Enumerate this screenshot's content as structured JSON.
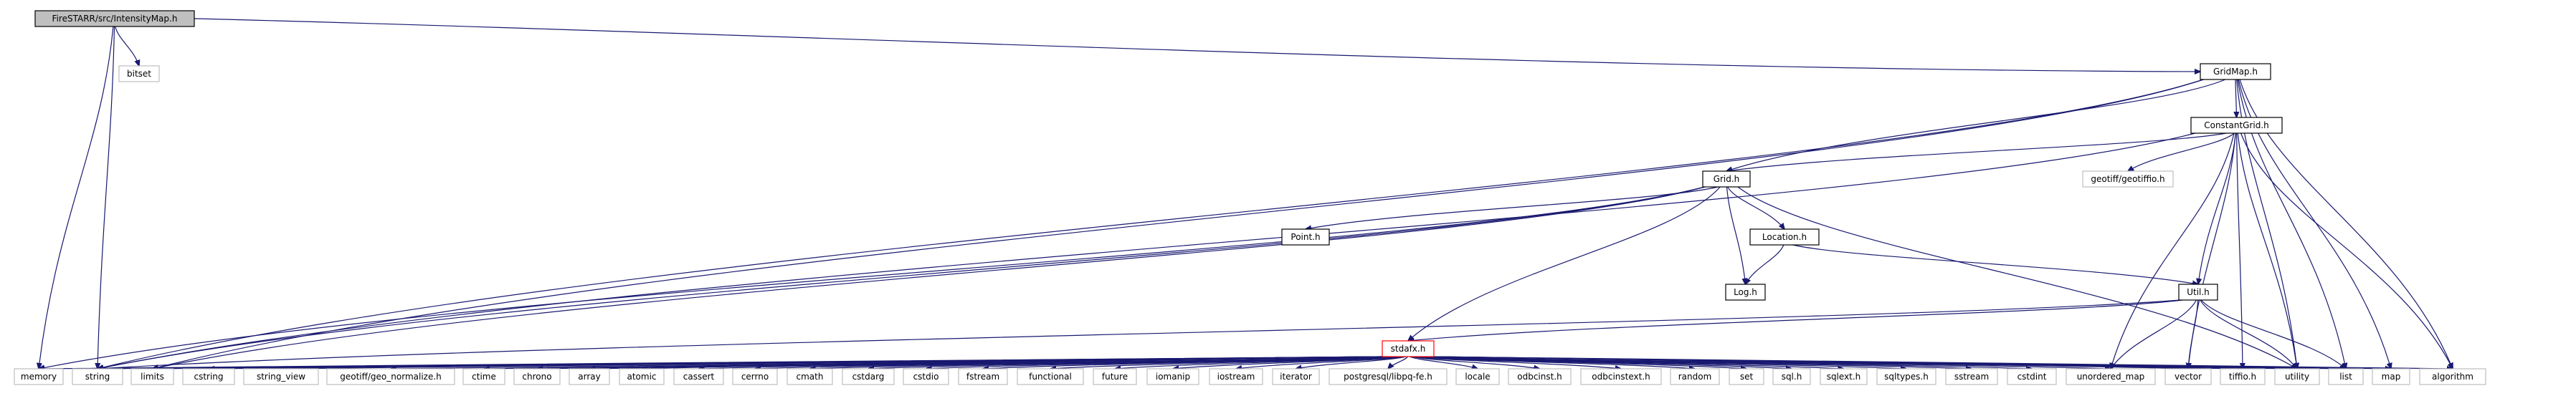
{
  "graph": {
    "root": {
      "label": "FireSTARR/src/IntensityMap.h"
    },
    "project_headers": [
      {
        "id": "gridmap",
        "label": "GridMap.h"
      },
      {
        "id": "constantgrid",
        "label": "ConstantGrid.h"
      },
      {
        "id": "grid",
        "label": "Grid.h"
      },
      {
        "id": "point",
        "label": "Point.h"
      },
      {
        "id": "location",
        "label": "Location.h"
      },
      {
        "id": "log",
        "label": "Log.h"
      },
      {
        "id": "util",
        "label": "Util.h"
      },
      {
        "id": "stdafx",
        "label": "stdafx.h"
      }
    ],
    "system_headers": [
      {
        "id": "bitset",
        "label": "bitset"
      },
      {
        "id": "geotiffio",
        "label": "geotiff/geotiffio.h"
      },
      {
        "id": "memory",
        "label": "memory"
      },
      {
        "id": "string",
        "label": "string"
      },
      {
        "id": "limits",
        "label": "limits"
      },
      {
        "id": "cstring",
        "label": "cstring"
      },
      {
        "id": "string_view",
        "label": "string_view"
      },
      {
        "id": "geo_normalize",
        "label": "geotiff/geo_normalize.h"
      },
      {
        "id": "ctime",
        "label": "ctime"
      },
      {
        "id": "chrono",
        "label": "chrono"
      },
      {
        "id": "array",
        "label": "array"
      },
      {
        "id": "atomic",
        "label": "atomic"
      },
      {
        "id": "cassert",
        "label": "cassert"
      },
      {
        "id": "cerrno",
        "label": "cerrno"
      },
      {
        "id": "cmath",
        "label": "cmath"
      },
      {
        "id": "cstdarg",
        "label": "cstdarg"
      },
      {
        "id": "cstdio",
        "label": "cstdio"
      },
      {
        "id": "fstream",
        "label": "fstream"
      },
      {
        "id": "functional",
        "label": "functional"
      },
      {
        "id": "future",
        "label": "future"
      },
      {
        "id": "iomanip",
        "label": "iomanip"
      },
      {
        "id": "iostream",
        "label": "iostream"
      },
      {
        "id": "iterator",
        "label": "iterator"
      },
      {
        "id": "libpq",
        "label": "postgresql/libpq-fe.h"
      },
      {
        "id": "locale",
        "label": "locale"
      },
      {
        "id": "odbcinst",
        "label": "odbcinst.h"
      },
      {
        "id": "odbcinstext",
        "label": "odbcinstext.h"
      },
      {
        "id": "random",
        "label": "random"
      },
      {
        "id": "set",
        "label": "set"
      },
      {
        "id": "sql",
        "label": "sql.h"
      },
      {
        "id": "sqlext",
        "label": "sqlext.h"
      },
      {
        "id": "sqltypes",
        "label": "sqltypes.h"
      },
      {
        "id": "sstream",
        "label": "sstream"
      },
      {
        "id": "cstdint",
        "label": "cstdint"
      },
      {
        "id": "unordered_map",
        "label": "unordered_map"
      },
      {
        "id": "vector",
        "label": "vector"
      },
      {
        "id": "tiffio",
        "label": "tiffio.h"
      },
      {
        "id": "utility",
        "label": "utility"
      },
      {
        "id": "list",
        "label": "list"
      },
      {
        "id": "map",
        "label": "map"
      },
      {
        "id": "algorithm",
        "label": "algorithm"
      }
    ],
    "colors": {
      "edge": "#191970",
      "root_fill": "#bfbfbf",
      "system_border": "#bfbfbf",
      "project_border": "#000000",
      "highlight_border": "#ff0000"
    }
  }
}
